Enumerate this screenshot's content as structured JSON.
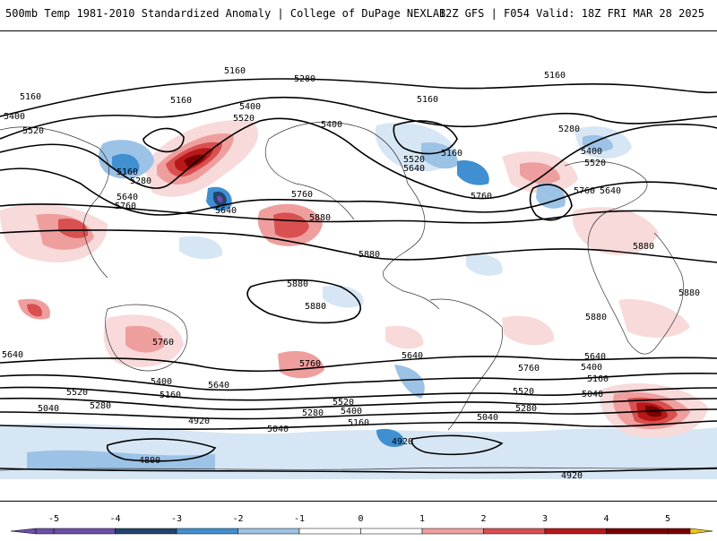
{
  "header": {
    "title": "500mb Temp 1981-2010 Standardized Anomaly | College of DuPage NEXLAB",
    "run_info": "12Z GFS | F054 Valid: 18Z FRI MAR 28 2025"
  },
  "colors": {
    "neg5": "#6b4fa8",
    "neg4": "#22446e",
    "neg3": "#3f8fd1",
    "neg2": "#9cc2e6",
    "neg1": "#d7e6f4",
    "pos1": "#f8dada",
    "pos2": "#ef9e9e",
    "pos3": "#d95050",
    "pos4": "#b81818",
    "pos5": "#7a0000",
    "top": "#f1c21b",
    "contour": "#000000"
  },
  "colorbar": {
    "ticks": [
      "-5",
      "-4",
      "-3",
      "-2",
      "-1",
      "0",
      "1",
      "2",
      "3",
      "4",
      "5"
    ]
  },
  "contour_labels": [
    "5160",
    "5280",
    "5400",
    "5520",
    "5640",
    "5760",
    "5880",
    "5040",
    "4920",
    "4800"
  ],
  "anomaly_features": [
    {
      "sign": "+",
      "level": 5,
      "region": "North Pacific"
    },
    {
      "sign": "+",
      "level": 5,
      "region": "South Atlantic"
    },
    {
      "sign": "+",
      "level": 4,
      "region": "Central Pacific"
    },
    {
      "sign": "-",
      "level": 4,
      "region": "North Pacific"
    },
    {
      "sign": "-",
      "level": 3,
      "region": "Eastern Canada"
    }
  ]
}
